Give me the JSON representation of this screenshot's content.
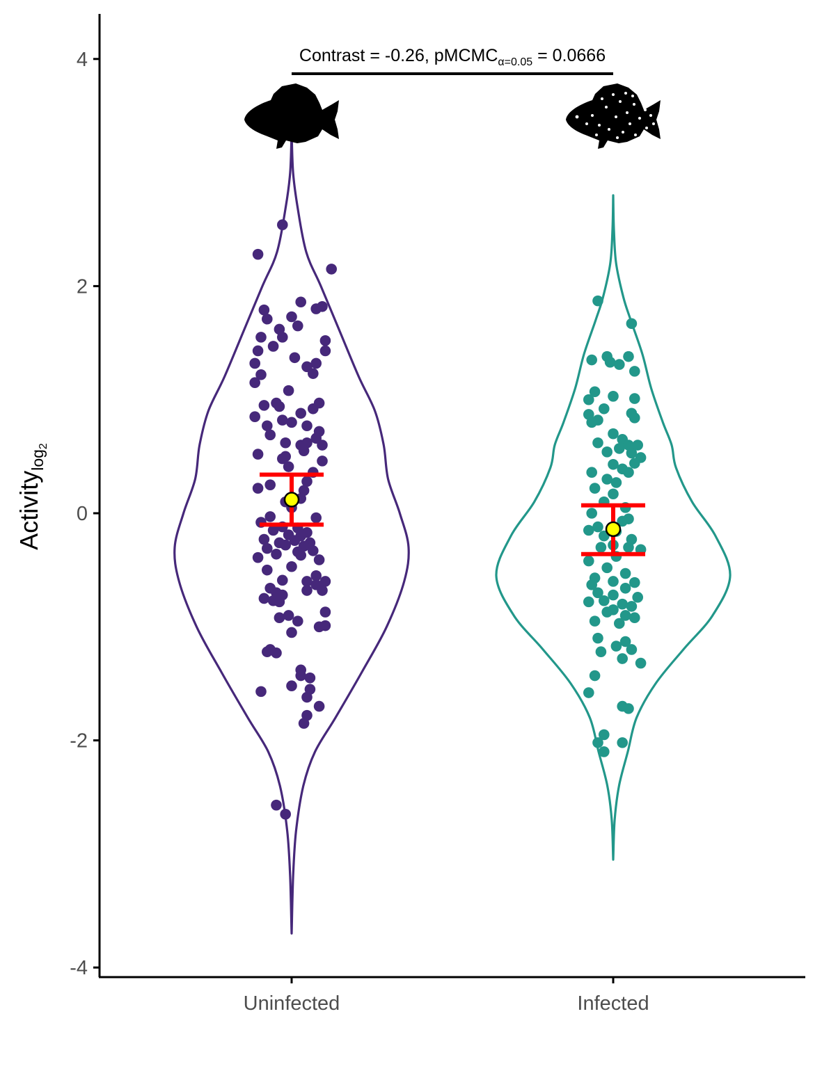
{
  "chart_data": {
    "type": "violin",
    "ylabel_main": "Activity",
    "ylabel_sub": "log",
    "ylabel_sub2": "2",
    "ylim": [
      -4.05,
      4.4
    ],
    "y_ticks": [
      4,
      2,
      0,
      -2,
      -4
    ],
    "y_tick_labels": [
      "4",
      "2",
      "0",
      "-2",
      "-4"
    ],
    "categories": [
      "Uninfected",
      "Infected"
    ],
    "annotation": {
      "prefix": "Contrast = -0.26, pMCMC",
      "subscript": "α=0.05",
      "suffix": " = 0.0666",
      "bracket_y": 3.87
    },
    "series": [
      {
        "name": "Uninfected",
        "color": "#46287a",
        "icon": "sunfish-silhouette-icon",
        "violin_range": [
          -3.7,
          3.35
        ],
        "violin_profile": [
          [
            -3.7,
            0.0
          ],
          [
            -3.2,
            0.01
          ],
          [
            -2.8,
            0.03
          ],
          [
            -2.4,
            0.08
          ],
          [
            -2.1,
            0.16
          ],
          [
            -1.8,
            0.3
          ],
          [
            -1.4,
            0.48
          ],
          [
            -1.0,
            0.65
          ],
          [
            -0.6,
            0.77
          ],
          [
            -0.3,
            0.8
          ],
          [
            0.0,
            0.74
          ],
          [
            0.3,
            0.66
          ],
          [
            0.6,
            0.63
          ],
          [
            0.9,
            0.57
          ],
          [
            1.2,
            0.46
          ],
          [
            1.6,
            0.33
          ],
          [
            2.0,
            0.2
          ],
          [
            2.3,
            0.1
          ],
          [
            2.7,
            0.04
          ],
          [
            3.0,
            0.01
          ],
          [
            3.35,
            0.0
          ]
        ],
        "points": [
          [
            -0.03,
            2.54
          ],
          [
            -0.11,
            2.28
          ],
          [
            0.13,
            2.15
          ],
          [
            0.03,
            1.86
          ],
          [
            0.08,
            1.8
          ],
          [
            -0.09,
            1.79
          ],
          [
            0.1,
            1.82
          ],
          [
            0.0,
            1.73
          ],
          [
            0.02,
            1.65
          ],
          [
            -0.08,
            1.71
          ],
          [
            -0.04,
            1.62
          ],
          [
            -0.1,
            1.55
          ],
          [
            -0.03,
            1.55
          ],
          [
            0.11,
            1.52
          ],
          [
            -0.06,
            1.47
          ],
          [
            -0.11,
            1.43
          ],
          [
            0.11,
            1.43
          ],
          [
            0.01,
            1.37
          ],
          [
            0.08,
            1.32
          ],
          [
            -0.12,
            1.32
          ],
          [
            0.05,
            1.29
          ],
          [
            0.07,
            1.23
          ],
          [
            -0.1,
            1.22
          ],
          [
            -0.12,
            1.15
          ],
          [
            -0.01,
            1.08
          ],
          [
            0.09,
            0.97
          ],
          [
            -0.05,
            0.97
          ],
          [
            -0.09,
            0.95
          ],
          [
            -0.04,
            0.94
          ],
          [
            0.07,
            0.92
          ],
          [
            0.03,
            0.88
          ],
          [
            -0.12,
            0.85
          ],
          [
            -0.03,
            0.82
          ],
          [
            0.0,
            0.8
          ],
          [
            0.05,
            0.77
          ],
          [
            -0.08,
            0.77
          ],
          [
            0.09,
            0.72
          ],
          [
            -0.07,
            0.69
          ],
          [
            0.08,
            0.66
          ],
          [
            -0.02,
            0.62
          ],
          [
            0.05,
            0.62
          ],
          [
            0.03,
            0.6
          ],
          [
            0.1,
            0.6
          ],
          [
            -0.11,
            0.52
          ],
          [
            0.04,
            0.55
          ],
          [
            -0.03,
            0.48
          ],
          [
            -0.02,
            0.5
          ],
          [
            0.1,
            0.46
          ],
          [
            -0.01,
            0.41
          ],
          [
            0.07,
            0.36
          ],
          [
            0.05,
            0.28
          ],
          [
            -0.07,
            0.25
          ],
          [
            -0.11,
            0.22
          ],
          [
            0.04,
            0.2
          ],
          [
            0.03,
            0.13
          ],
          [
            -0.02,
            0.1
          ],
          [
            0.0,
            0.05
          ],
          [
            -0.07,
            -0.03
          ],
          [
            0.08,
            -0.04
          ],
          [
            -0.1,
            -0.08
          ],
          [
            -0.03,
            -0.12
          ],
          [
            0.02,
            -0.13
          ],
          [
            -0.06,
            -0.15
          ],
          [
            0.05,
            -0.17
          ],
          [
            -0.01,
            -0.19
          ],
          [
            0.03,
            -0.2
          ],
          [
            -0.09,
            -0.23
          ],
          [
            0.01,
            -0.24
          ],
          [
            -0.04,
            -0.26
          ],
          [
            0.06,
            -0.26
          ],
          [
            -0.02,
            -0.28
          ],
          [
            0.04,
            -0.29
          ],
          [
            -0.08,
            -0.31
          ],
          [
            0.07,
            -0.33
          ],
          [
            0.02,
            -0.34
          ],
          [
            -0.05,
            -0.36
          ],
          [
            0.03,
            -0.37
          ],
          [
            -0.11,
            -0.39
          ],
          [
            0.09,
            -0.41
          ],
          [
            0.0,
            -0.47
          ],
          [
            -0.08,
            -0.5
          ],
          [
            0.08,
            -0.55
          ],
          [
            -0.03,
            -0.59
          ],
          [
            0.05,
            -0.6
          ],
          [
            0.11,
            -0.6
          ],
          [
            0.08,
            -0.63
          ],
          [
            -0.07,
            -0.66
          ],
          [
            0.05,
            -0.68
          ],
          [
            0.1,
            -0.68
          ],
          [
            -0.05,
            -0.7
          ],
          [
            -0.03,
            -0.72
          ],
          [
            -0.09,
            -0.75
          ],
          [
            -0.06,
            -0.77
          ],
          [
            -0.04,
            -0.78
          ],
          [
            0.11,
            -0.87
          ],
          [
            -0.01,
            -0.9
          ],
          [
            -0.04,
            -0.92
          ],
          [
            0.02,
            -0.95
          ],
          [
            0.11,
            -0.99
          ],
          [
            0.09,
            -1.0
          ],
          [
            0.0,
            -1.05
          ],
          [
            -0.07,
            -1.2
          ],
          [
            -0.08,
            -1.22
          ],
          [
            -0.05,
            -1.23
          ],
          [
            0.03,
            -1.38
          ],
          [
            0.06,
            -1.45
          ],
          [
            0.03,
            -1.43
          ],
          [
            -0.1,
            -1.57
          ],
          [
            0.06,
            -1.55
          ],
          [
            0.05,
            -1.62
          ],
          [
            0.0,
            -1.52
          ],
          [
            0.09,
            -1.7
          ],
          [
            0.05,
            -1.78
          ],
          [
            0.04,
            -1.85
          ],
          [
            -0.05,
            -2.57
          ],
          [
            -0.02,
            -2.65
          ]
        ],
        "mean": 0.12,
        "ci_lower": -0.1,
        "ci_upper": 0.34
      },
      {
        "name": "Infected",
        "color": "#22978a",
        "icon": "spotted-sunfish-silhouette-icon",
        "violin_range": [
          -3.05,
          2.8
        ],
        "violin_profile": [
          [
            -3.05,
            0.0
          ],
          [
            -2.7,
            0.01
          ],
          [
            -2.4,
            0.04
          ],
          [
            -2.1,
            0.1
          ],
          [
            -1.8,
            0.16
          ],
          [
            -1.5,
            0.29
          ],
          [
            -1.2,
            0.48
          ],
          [
            -0.9,
            0.68
          ],
          [
            -0.55,
            0.8
          ],
          [
            -0.2,
            0.7
          ],
          [
            0.1,
            0.54
          ],
          [
            0.4,
            0.43
          ],
          [
            0.6,
            0.4
          ],
          [
            0.8,
            0.34
          ],
          [
            1.1,
            0.26
          ],
          [
            1.4,
            0.2
          ],
          [
            1.7,
            0.12
          ],
          [
            1.9,
            0.07
          ],
          [
            2.2,
            0.02
          ],
          [
            2.5,
            0.005
          ],
          [
            2.8,
            0.0
          ]
        ],
        "points": [
          [
            -0.05,
            1.87
          ],
          [
            0.06,
            1.67
          ],
          [
            -0.02,
            1.38
          ],
          [
            0.05,
            1.38
          ],
          [
            -0.07,
            1.35
          ],
          [
            -0.01,
            1.33
          ],
          [
            0.02,
            1.31
          ],
          [
            0.07,
            1.25
          ],
          [
            -0.06,
            1.07
          ],
          [
            0.0,
            1.03
          ],
          [
            -0.08,
            1.0
          ],
          [
            0.07,
            1.01
          ],
          [
            -0.03,
            0.92
          ],
          [
            0.06,
            0.88
          ],
          [
            -0.08,
            0.87
          ],
          [
            -0.05,
            0.82
          ],
          [
            0.07,
            0.84
          ],
          [
            -0.07,
            0.8
          ],
          [
            0.0,
            0.7
          ],
          [
            -0.05,
            0.62
          ],
          [
            0.03,
            0.65
          ],
          [
            0.02,
            0.57
          ],
          [
            -0.02,
            0.54
          ],
          [
            0.05,
            0.6
          ],
          [
            0.08,
            0.6
          ],
          [
            0.06,
            0.53
          ],
          [
            0.09,
            0.49
          ],
          [
            0.0,
            0.43
          ],
          [
            0.07,
            0.44
          ],
          [
            0.03,
            0.39
          ],
          [
            0.05,
            0.36
          ],
          [
            -0.07,
            0.36
          ],
          [
            -0.02,
            0.3
          ],
          [
            0.01,
            0.27
          ],
          [
            -0.06,
            0.22
          ],
          [
            0.0,
            0.17
          ],
          [
            -0.03,
            0.1
          ],
          [
            0.04,
            0.05
          ],
          [
            -0.07,
            0.0
          ],
          [
            0.05,
            -0.05
          ],
          [
            0.03,
            -0.07
          ],
          [
            -0.05,
            -0.12
          ],
          [
            -0.08,
            -0.15
          ],
          [
            0.01,
            -0.16
          ],
          [
            -0.03,
            -0.2
          ],
          [
            0.06,
            -0.23
          ],
          [
            0.0,
            -0.28
          ],
          [
            -0.04,
            -0.3
          ],
          [
            0.05,
            -0.3
          ],
          [
            0.09,
            -0.32
          ],
          [
            0.01,
            -0.38
          ],
          [
            -0.08,
            -0.42
          ],
          [
            -0.02,
            -0.48
          ],
          [
            0.04,
            -0.53
          ],
          [
            -0.06,
            -0.57
          ],
          [
            0.0,
            -0.6
          ],
          [
            0.07,
            -0.61
          ],
          [
            -0.07,
            -0.63
          ],
          [
            0.04,
            -0.66
          ],
          [
            -0.05,
            -0.7
          ],
          [
            0.0,
            -0.72
          ],
          [
            0.08,
            -0.74
          ],
          [
            -0.03,
            -0.77
          ],
          [
            -0.08,
            -0.78
          ],
          [
            0.03,
            -0.8
          ],
          [
            0.06,
            -0.82
          ],
          [
            0.0,
            -0.85
          ],
          [
            -0.02,
            -0.87
          ],
          [
            0.04,
            -0.9
          ],
          [
            0.07,
            -0.92
          ],
          [
            -0.06,
            -0.95
          ],
          [
            0.02,
            -0.97
          ],
          [
            -0.05,
            -1.1
          ],
          [
            0.04,
            -1.13
          ],
          [
            0.01,
            -1.17
          ],
          [
            0.06,
            -1.2
          ],
          [
            -0.04,
            -1.22
          ],
          [
            0.03,
            -1.28
          ],
          [
            0.09,
            -1.32
          ],
          [
            -0.06,
            -1.43
          ],
          [
            -0.08,
            -1.58
          ],
          [
            0.03,
            -1.7
          ],
          [
            0.05,
            -1.72
          ],
          [
            -0.03,
            -1.95
          ],
          [
            0.03,
            -2.02
          ],
          [
            -0.05,
            -2.02
          ],
          [
            -0.03,
            -2.1
          ]
        ],
        "mean": -0.14,
        "ci_lower": -0.36,
        "ci_upper": 0.07
      }
    ],
    "summary_colors": {
      "ci": "#ff0000",
      "mean_fill": "#ffff00",
      "mean_stroke": "#000000"
    }
  }
}
